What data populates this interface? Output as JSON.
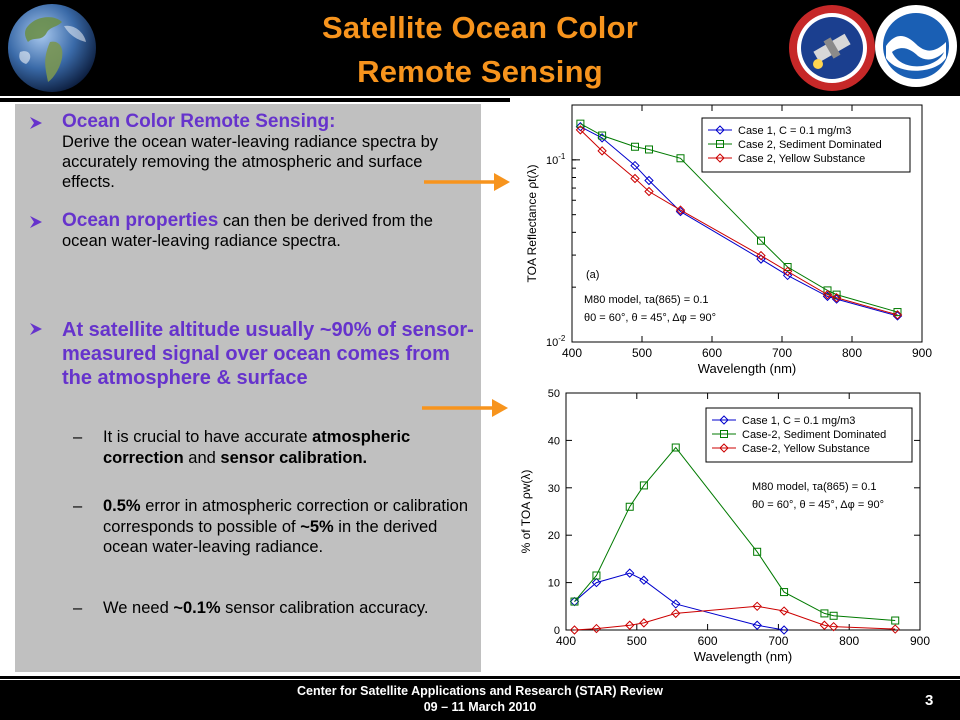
{
  "slide": {
    "title_line1": "Satellite Ocean Color",
    "title_line2": "Remote Sensing",
    "footer_line1": "Center for Satellite Applications and Research (STAR) Review",
    "footer_line2": "09 – 11 March 2010",
    "page_number": "3"
  },
  "bullets": {
    "b1_lead": "Ocean Color Remote Sensing:",
    "b1_text": "Derive the ocean water-leaving radiance spectra by accurately removing the atmospheric and surface effects.",
    "b2_lead": "Ocean properties",
    "b2_text": " can then be derived from the ocean water-leaving radiance spectra.",
    "b3_text": "At satellite altitude usually ~90% of sensor-measured signal over ocean comes from the atmosphere & surface",
    "sub1_a": "It is crucial to have accurate ",
    "sub1_b": "atmospheric correction",
    "sub1_c": " and ",
    "sub1_d": "sensor calibration.",
    "sub2_a": "0.5%",
    "sub2_b": " error in atmospheric correction or calibration corresponds to possible of ",
    "sub2_c": "~5%",
    "sub2_d": " in the derived ocean water-leaving radiance.",
    "sub3_a": "We need ",
    "sub3_b": "~0.1%",
    "sub3_c": " sensor calibration accuracy."
  },
  "colors": {
    "title": "#f7941d",
    "lead_text": "#6633cc",
    "arrow": "#f7941d",
    "series_case1": "#0000cc",
    "series_sediment": "#007a00",
    "series_yellow": "#cc0000"
  },
  "chart_data": [
    {
      "type": "line",
      "xlabel": "Wavelength (nm)",
      "ylabel": "TOA Reflectance ρt(λ)",
      "xlim": [
        400,
        900
      ],
      "ylim": [
        0.01,
        0.2
      ],
      "yscale": "log",
      "x_ticks": [
        "400",
        "500",
        "600",
        "700",
        "800",
        "900"
      ],
      "y_ticks": [
        "10-1",
        "10-2"
      ],
      "panel_label": "(a)",
      "note_line1": "M80 model, τa(865) = 0.1",
      "note_line2": "θ0 = 60°, θ = 45°, Δφ = 90°",
      "series": [
        {
          "name": "Case 1, C = 0.1 mg/m3",
          "x": [
            412,
            443,
            490,
            510,
            555,
            670,
            708,
            765,
            778,
            865
          ],
          "values": [
            0.152,
            0.132,
            0.093,
            0.077,
            0.052,
            0.0285,
            0.0232,
            0.0178,
            0.0172,
            0.0139
          ]
        },
        {
          "name": "Case 2, Sediment Dominated",
          "x": [
            412,
            443,
            490,
            510,
            555,
            670,
            708,
            765,
            778,
            865
          ],
          "values": [
            0.158,
            0.136,
            0.118,
            0.114,
            0.102,
            0.036,
            0.0258,
            0.0192,
            0.0182,
            0.0146
          ]
        },
        {
          "name": "Case 2, Yellow Substance",
          "x": [
            412,
            443,
            490,
            510,
            555,
            670,
            708,
            765,
            778,
            865
          ],
          "values": [
            0.146,
            0.112,
            0.079,
            0.067,
            0.053,
            0.0298,
            0.0244,
            0.0182,
            0.0175,
            0.0141
          ]
        }
      ]
    },
    {
      "type": "line",
      "xlabel": "Wavelength (nm)",
      "ylabel": "% of TOA ρw(λ)",
      "xlim": [
        400,
        900
      ],
      "ylim": [
        0,
        50
      ],
      "x_ticks": [
        "400",
        "500",
        "600",
        "700",
        "800",
        "900"
      ],
      "y_ticks": [
        "0",
        "10",
        "20",
        "30",
        "40",
        "50"
      ],
      "note_line1": "M80 model, τa(865) = 0.1",
      "note_line2": "θ0 = 60°, θ = 45°, Δφ = 90°",
      "series": [
        {
          "name": "Case 1, C = 0.1 mg/m3",
          "x": [
            412,
            443,
            490,
            510,
            555,
            670,
            708
          ],
          "values": [
            6.0,
            10.0,
            12.0,
            10.5,
            5.5,
            1.0,
            0.0
          ]
        },
        {
          "name": "Case-2, Sediment Dominated",
          "x": [
            412,
            443,
            490,
            510,
            555,
            670,
            708,
            765,
            778,
            865
          ],
          "values": [
            6.0,
            11.5,
            26.0,
            30.5,
            38.5,
            16.5,
            8.0,
            3.5,
            3.0,
            2.0
          ]
        },
        {
          "name": "Case-2, Yellow Substance",
          "x": [
            412,
            443,
            490,
            510,
            555,
            670,
            708,
            765,
            778,
            865
          ],
          "values": [
            0.0,
            0.3,
            1.0,
            1.5,
            3.5,
            5.0,
            4.0,
            1.0,
            0.7,
            0.2
          ]
        }
      ]
    }
  ]
}
